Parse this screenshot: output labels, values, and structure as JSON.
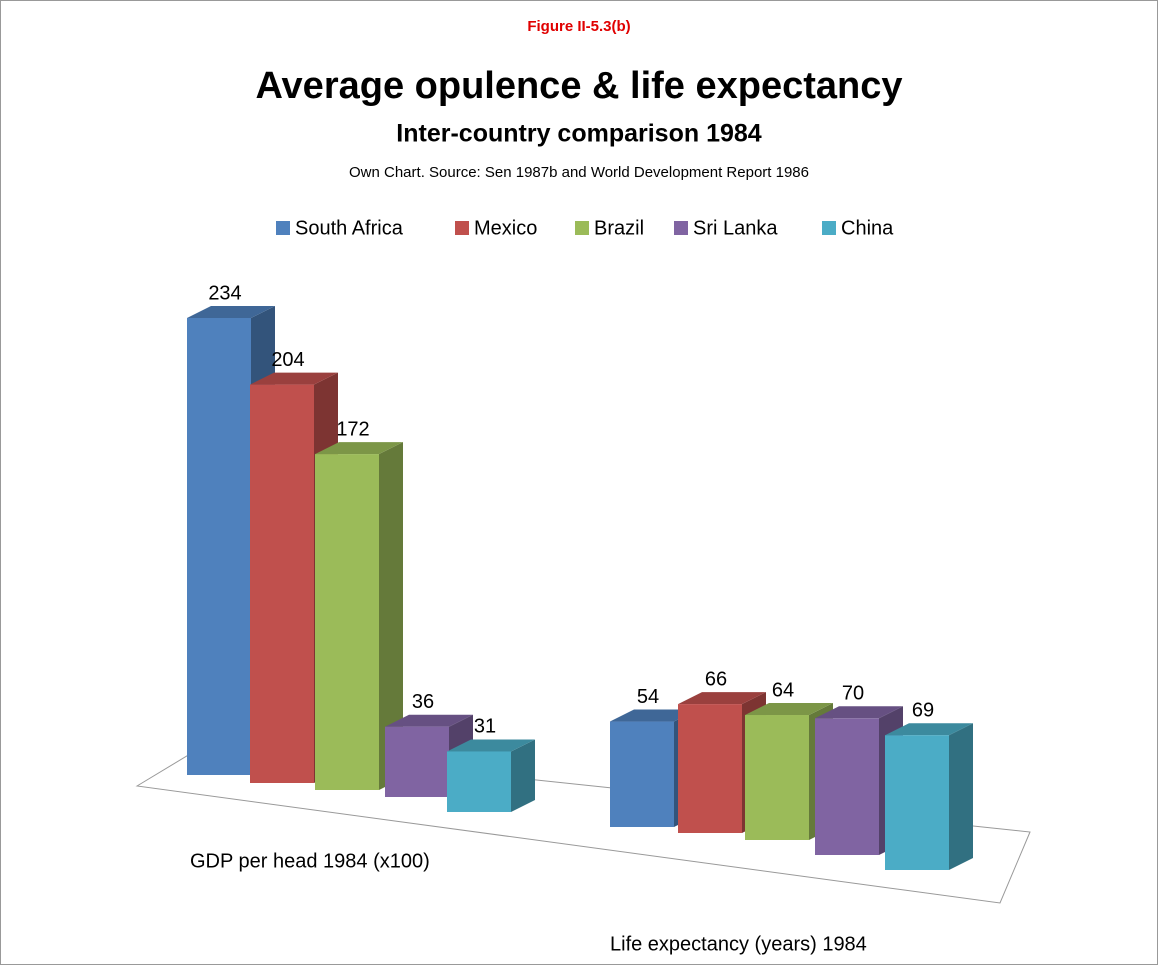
{
  "chart_data": {
    "type": "bar3d",
    "figure_label": "Figure II-5.3(b)",
    "title": "Average opulence & life expectancy",
    "subtitle": "Inter-country comparison 1984",
    "source": "Own Chart. Source: Sen 1987b and World Development Report 1986",
    "categories": [
      "GDP per head 1984 (x100)",
      "Life expectancy (years) 1984"
    ],
    "series": [
      {
        "name": "South Africa",
        "color": "#4f81bd",
        "values": [
          234,
          54
        ]
      },
      {
        "name": "Mexico",
        "color": "#c0504d",
        "values": [
          204,
          66
        ]
      },
      {
        "name": "Brazil",
        "color": "#9bbb59",
        "values": [
          172,
          64
        ]
      },
      {
        "name": "Sri Lanka",
        "color": "#8064a2",
        "values": [
          36,
          70
        ]
      },
      {
        "name": "China",
        "color": "#4bacc6",
        "values": [
          31,
          69
        ]
      }
    ],
    "legend": "top"
  }
}
